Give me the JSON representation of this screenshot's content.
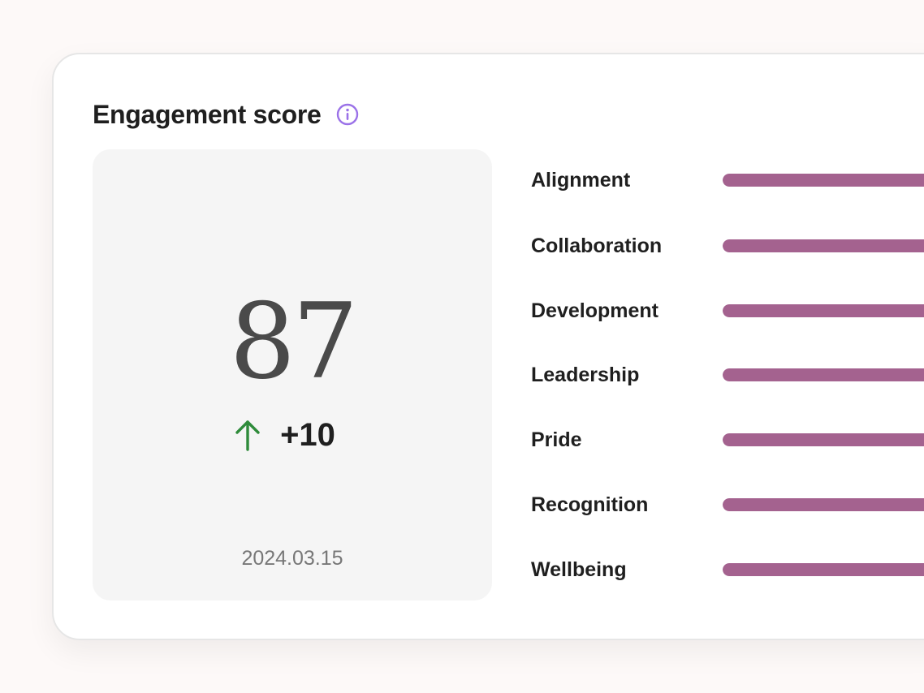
{
  "card": {
    "title": "Engagement score",
    "info_icon": "info-circle-icon"
  },
  "score": {
    "value": "87",
    "delta": "+10",
    "trend_icon": "arrow-up-icon",
    "date": "2024.03.15"
  },
  "colors": {
    "accent_info": "#9b72e8",
    "trend_up": "#2e8b3a",
    "bar": "#a4628f"
  },
  "dimensions": [
    {
      "label": "Alignment",
      "fill": 1.0
    },
    {
      "label": "Collaboration",
      "fill": 1.0
    },
    {
      "label": "Development",
      "fill": 1.0
    },
    {
      "label": "Leadership",
      "fill": 1.0
    },
    {
      "label": "Pride",
      "fill": 1.0
    },
    {
      "label": "Recognition",
      "fill": 1.0
    },
    {
      "label": "Wellbeing",
      "fill": 1.0
    }
  ]
}
